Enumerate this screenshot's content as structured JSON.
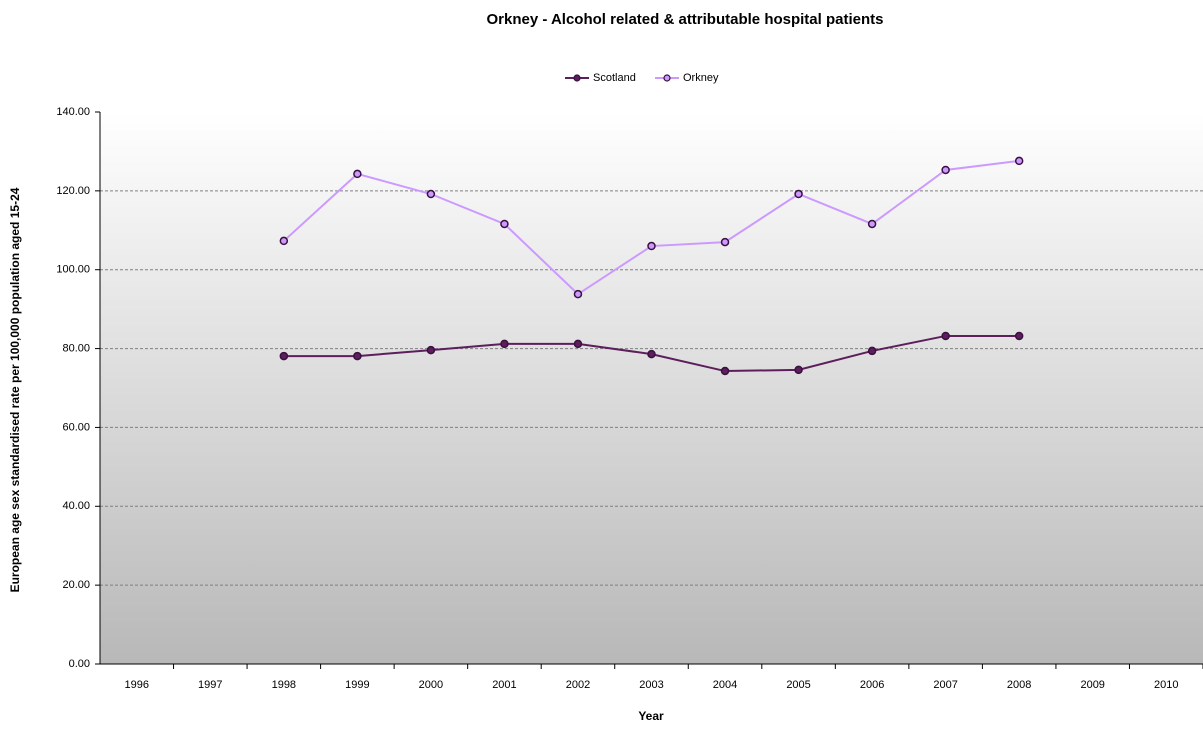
{
  "chart_data": {
    "type": "line",
    "title": "Orkney - Alcohol related & attributable hospital patients",
    "x_label": "Year",
    "y_label": "European age sex standardised rate per 100,000 population aged 15-24",
    "categories": [
      "1996",
      "1997",
      "1998",
      "1999",
      "2000",
      "2001",
      "2002",
      "2003",
      "2004",
      "2005",
      "2006",
      "2007",
      "2008",
      "2009",
      "2010"
    ],
    "series": [
      {
        "name": "Scotland",
        "color": "#5c1f5c",
        "marker_fill": "#5c1f5c",
        "values": [
          null,
          null,
          78.1,
          78.1,
          79.6,
          81.2,
          81.2,
          78.6,
          74.3,
          74.6,
          79.4,
          83.2,
          83.2,
          null,
          null
        ]
      },
      {
        "name": "Orkney",
        "color": "#cc99ff",
        "marker_fill": "#cc99ff",
        "values": [
          null,
          null,
          107.3,
          124.3,
          119.2,
          111.6,
          93.8,
          106.0,
          107.0,
          119.2,
          111.6,
          125.3,
          127.6,
          null,
          null
        ]
      }
    ],
    "ylim": [
      0,
      140
    ],
    "yticks": [
      {
        "value": 0,
        "label": "0.00"
      },
      {
        "value": 20,
        "label": "20.00"
      },
      {
        "value": 40,
        "label": "40.00"
      },
      {
        "value": 60,
        "label": "60.00"
      },
      {
        "value": 80,
        "label": "80.00"
      },
      {
        "value": 100,
        "label": "100.00"
      },
      {
        "value": 120,
        "label": "120.00"
      },
      {
        "value": 140,
        "label": "140.00"
      }
    ],
    "grid": true,
    "legend": "top"
  }
}
